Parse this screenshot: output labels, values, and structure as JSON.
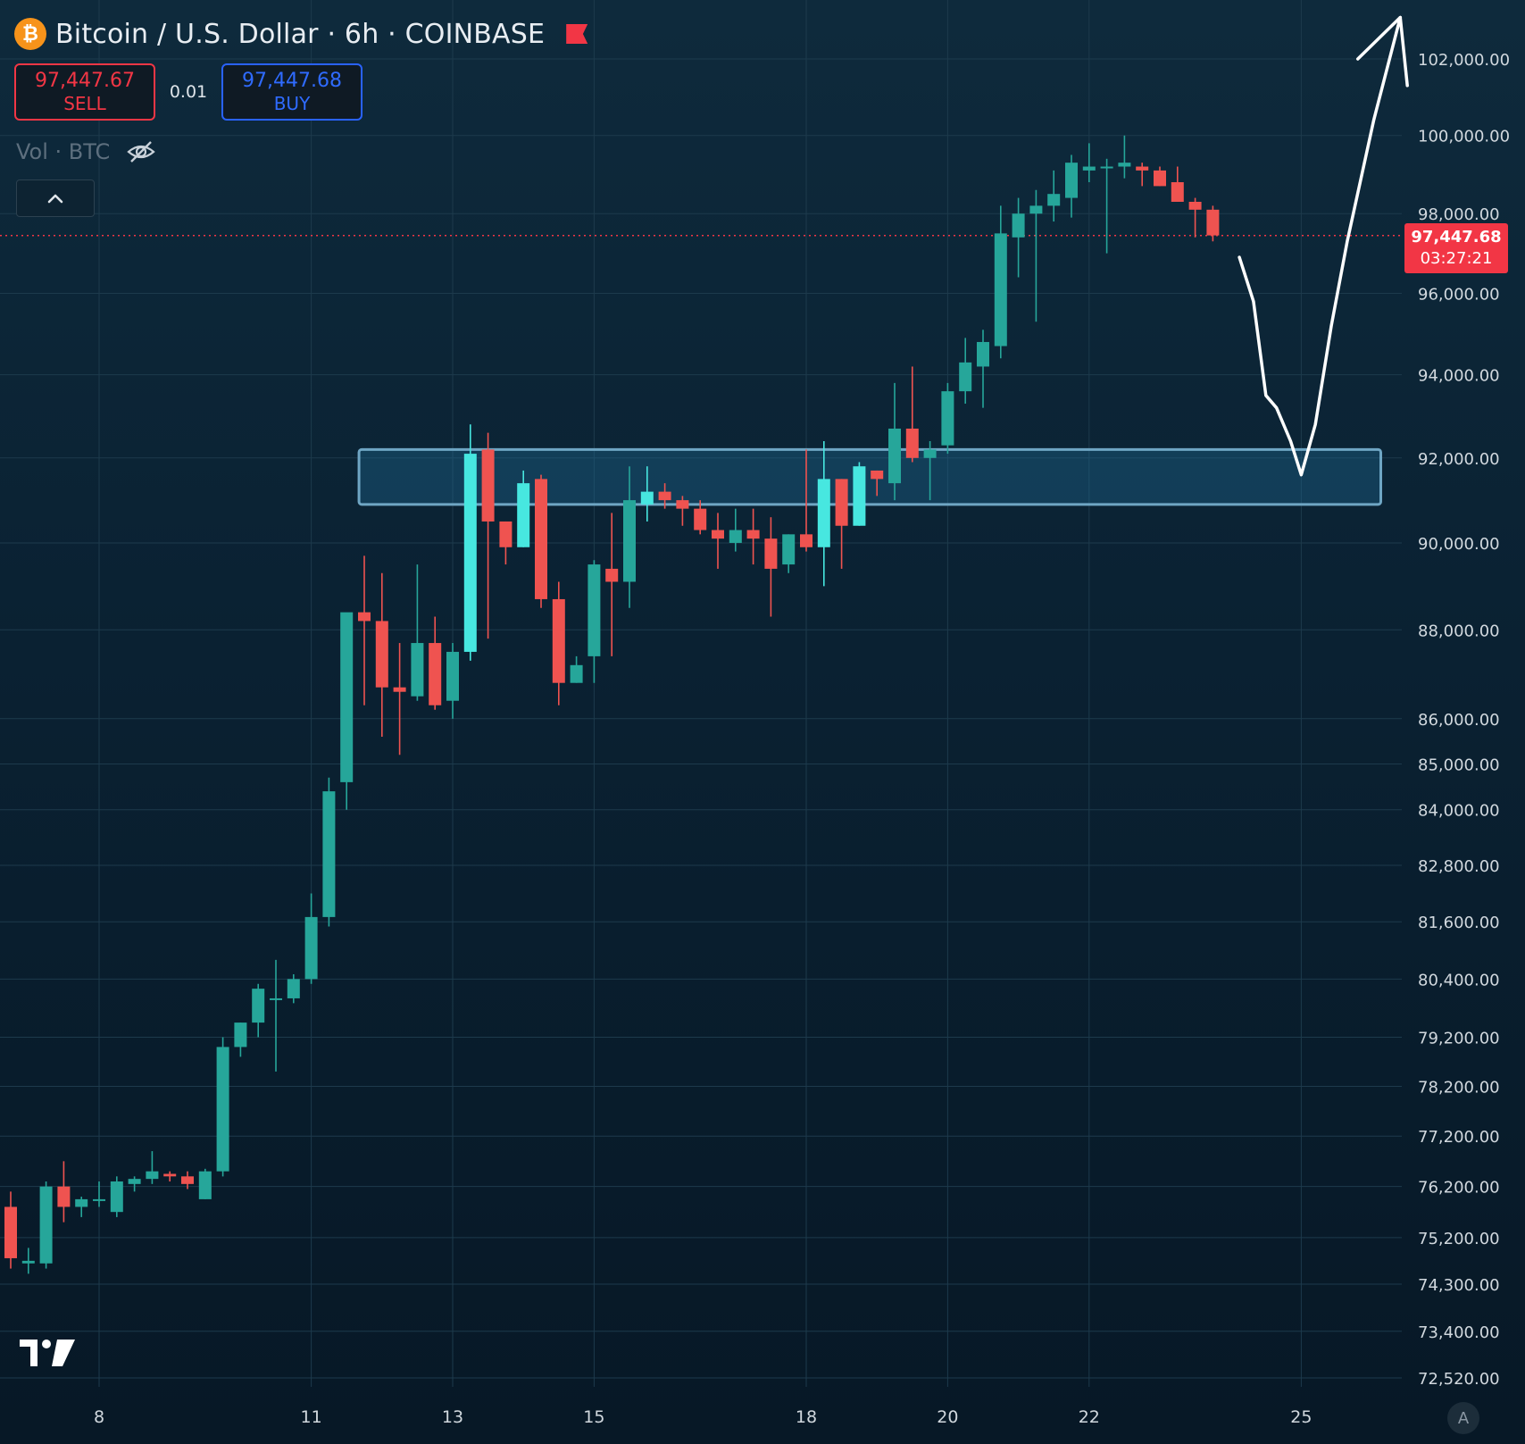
{
  "header": {
    "symbol": "Bitcoin / U.S. Dollar · 6h · COINBASE",
    "logo_glyph": "₿",
    "sell_price": "97,447.67",
    "sell_label": "SELL",
    "quantity": "0.01",
    "buy_price": "97,447.68",
    "buy_label": "BUY",
    "volume_label": "Vol · BTC"
  },
  "current_price": {
    "value": "97,447.68",
    "countdown": "03:27:21",
    "level": 97447.68
  },
  "colors": {
    "up": "#26a69a",
    "down": "#ef5350",
    "highlight_up": "#47e7e0",
    "highlight_down": "#f06a6e",
    "zone": "#1f6f9a",
    "price_line": "#f23645",
    "sketch": "#ffffff"
  },
  "chart_data": {
    "type": "candlestick",
    "interval": "6h",
    "exchange": "COINBASE",
    "pair": "BTC/USD",
    "scale": "log",
    "ylim": [
      72000,
      103500
    ],
    "y_ticks": [
      "102,000.00",
      "100,000.00",
      "98,000.00",
      "96,000.00",
      "94,000.00",
      "92,000.00",
      "90,000.00",
      "88,000.00",
      "86,000.00",
      "85,000.00",
      "84,000.00",
      "82,800.00",
      "81,600.00",
      "80,400.00",
      "79,200.00",
      "78,200.00",
      "77,200.00",
      "76,200.00",
      "75,200.00",
      "74,300.00",
      "73,400.00",
      "72,520.00"
    ],
    "x_ticks": [
      {
        "label": "8",
        "index": 5
      },
      {
        "label": "11",
        "index": 17
      },
      {
        "label": "13",
        "index": 25
      },
      {
        "label": "15",
        "index": 33
      },
      {
        "label": "18",
        "index": 45
      },
      {
        "label": "20",
        "index": 53
      },
      {
        "label": "22",
        "index": 61
      },
      {
        "label": "25",
        "index": 73
      }
    ],
    "candles": [
      [
        75800,
        76100,
        74600,
        74800
      ],
      [
        74700,
        75000,
        74500,
        74750
      ],
      [
        74700,
        76300,
        74600,
        76200
      ],
      [
        76200,
        76700,
        75500,
        75800
      ],
      [
        75800,
        76000,
        75600,
        75950
      ],
      [
        75950,
        76300,
        75800,
        75950
      ],
      [
        75700,
        76400,
        75600,
        76300
      ],
      [
        76250,
        76400,
        76100,
        76350
      ],
      [
        76350,
        76900,
        76250,
        76500
      ],
      [
        76450,
        76500,
        76300,
        76400
      ],
      [
        76400,
        76500,
        76150,
        76250
      ],
      [
        75950,
        76550,
        75950,
        76500
      ],
      [
        76500,
        79200,
        76400,
        79000
      ],
      [
        79000,
        79500,
        78800,
        79500
      ],
      [
        79500,
        80300,
        79200,
        80200
      ],
      [
        80000,
        80800,
        78500,
        80000
      ],
      [
        80000,
        80500,
        79900,
        80400
      ],
      [
        80400,
        82200,
        80300,
        81700
      ],
      [
        81700,
        84700,
        81500,
        84400
      ],
      [
        84600,
        88200,
        84000,
        88400
      ],
      [
        88400,
        89700,
        86300,
        88200
      ],
      [
        88200,
        89300,
        85600,
        86700
      ],
      [
        86700,
        87700,
        85200,
        86600
      ],
      [
        86500,
        89500,
        86400,
        87700
      ],
      [
        87700,
        88300,
        86200,
        86300
      ],
      [
        86400,
        87700,
        86000,
        87500
      ],
      [
        87500,
        92800,
        87300,
        92100
      ],
      [
        92200,
        92600,
        87800,
        90500
      ],
      [
        90500,
        90500,
        89500,
        89900
      ],
      [
        89900,
        91700,
        89900,
        91400
      ],
      [
        91500,
        91600,
        88500,
        88700
      ],
      [
        88700,
        89100,
        86300,
        86800
      ],
      [
        86800,
        87400,
        86800,
        87200
      ],
      [
        87400,
        89600,
        86800,
        89500
      ],
      [
        89400,
        90700,
        87400,
        89100
      ],
      [
        89100,
        91800,
        88500,
        91000
      ],
      [
        90900,
        91800,
        90500,
        91200
      ],
      [
        91200,
        91400,
        90800,
        91000
      ],
      [
        91000,
        91100,
        90400,
        90800
      ],
      [
        90800,
        91000,
        90200,
        90300
      ],
      [
        90300,
        90700,
        89400,
        90100
      ],
      [
        90000,
        90800,
        89800,
        90300
      ],
      [
        90300,
        90800,
        89500,
        90100
      ],
      [
        90100,
        90600,
        88300,
        89400
      ],
      [
        89500,
        90200,
        89300,
        90200
      ],
      [
        90200,
        92200,
        89800,
        89900
      ],
      [
        89900,
        92400,
        89000,
        91500
      ],
      [
        91500,
        91500,
        89400,
        90400
      ],
      [
        90400,
        91900,
        90400,
        91800
      ],
      [
        91700,
        91700,
        91100,
        91500
      ],
      [
        91400,
        93800,
        91000,
        92700
      ],
      [
        92700,
        94200,
        91900,
        92000
      ],
      [
        92000,
        92400,
        91000,
        92200
      ],
      [
        92300,
        93800,
        92100,
        93600
      ],
      [
        93600,
        94900,
        93300,
        94300
      ],
      [
        94200,
        95100,
        93200,
        94800
      ],
      [
        94700,
        98200,
        94400,
        97500
      ],
      [
        97400,
        98400,
        96400,
        98000
      ],
      [
        98000,
        98600,
        95300,
        98200
      ],
      [
        98200,
        99100,
        97800,
        98500
      ],
      [
        98400,
        99500,
        97900,
        99300
      ],
      [
        99100,
        99800,
        98800,
        99200
      ],
      [
        99200,
        99400,
        97000,
        99200
      ],
      [
        99200,
        100000,
        98900,
        99300
      ],
      [
        99200,
        99300,
        98700,
        99100
      ],
      [
        99100,
        99200,
        98700,
        98700
      ],
      [
        98800,
        99200,
        98300,
        98300
      ],
      [
        98300,
        98400,
        97400,
        98100
      ],
      [
        98100,
        98200,
        97300,
        97450
      ]
    ],
    "highlight_indices": [
      26,
      29,
      36,
      46,
      48
    ],
    "zone": {
      "from_index": 19.7,
      "to_index": 77.5,
      "low": 90900,
      "high": 92200
    },
    "sketch": [
      {
        "i": 69.5,
        "p": 96900
      },
      {
        "i": 70.3,
        "p": 95800
      },
      {
        "i": 71.0,
        "p": 93500
      },
      {
        "i": 71.6,
        "p": 93200
      },
      {
        "i": 72.4,
        "p": 92400
      },
      {
        "i": 73.0,
        "p": 91600
      },
      {
        "i": 73.8,
        "p": 92800
      },
      {
        "i": 74.7,
        "p": 95200
      },
      {
        "i": 75.6,
        "p": 97300
      },
      {
        "i": 77.1,
        "p": 100400
      },
      {
        "i": 78.6,
        "p": 103100
      }
    ],
    "sketch_arrow_left": {
      "i": 76.2,
      "p": 102000
    },
    "sketch_arrow_right": {
      "i": 79.0,
      "p": 101300
    }
  }
}
